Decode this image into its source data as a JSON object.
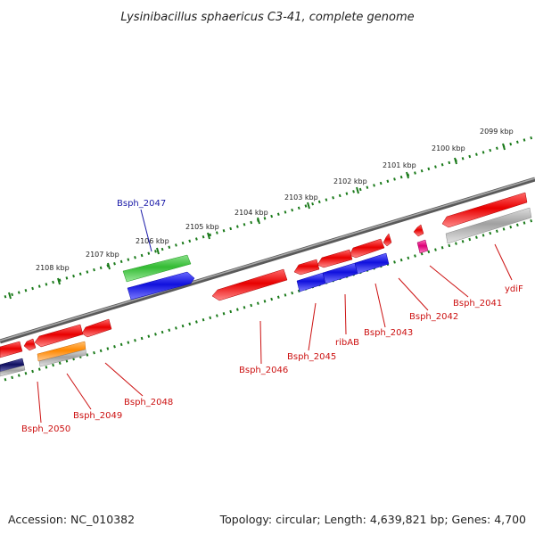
{
  "title": "Lysinibacillus sphaericus C3-41, complete genome",
  "footer": {
    "accession": "Accession: NC_010382",
    "summary": "Topology: circular; Length: 4,639,821 bp; Genes: 4,700"
  },
  "colors": {
    "backbone": "#777777",
    "ticks": "#1a7a1a",
    "forward_label": "#1a1aa8",
    "reverse_label": "#cc1111",
    "red_gene": "#e80000",
    "blue_gene": "#1010dd",
    "green_gene": "#33bb33",
    "orange_gene": "#ff8800",
    "gray_gene": "#a0a0a0",
    "magenta_gene": "#dd0077",
    "navy_gene": "#101060"
  },
  "kbp_labels": [
    "2099 kbp",
    "2100 kbp",
    "2101 kbp",
    "2102 kbp",
    "2103 kbp",
    "2104 kbp",
    "2105 kbp",
    "2106 kbp",
    "2107 kbp",
    "2108 kbp"
  ],
  "gene_labels": [
    {
      "name": "Bsph_2047",
      "strand": "forward"
    },
    {
      "name": "Bsph_2041",
      "strand": "reverse"
    },
    {
      "name": "ydiF",
      "strand": "reverse"
    },
    {
      "name": "Bsph_2042",
      "strand": "reverse"
    },
    {
      "name": "Bsph_2043",
      "strand": "reverse"
    },
    {
      "name": "ribAB",
      "strand": "reverse"
    },
    {
      "name": "Bsph_2045",
      "strand": "reverse"
    },
    {
      "name": "Bsph_2046",
      "strand": "reverse"
    },
    {
      "name": "Bsph_2048",
      "strand": "reverse"
    },
    {
      "name": "Bsph_2049",
      "strand": "reverse"
    },
    {
      "name": "Bsph_2050",
      "strand": "reverse"
    }
  ]
}
